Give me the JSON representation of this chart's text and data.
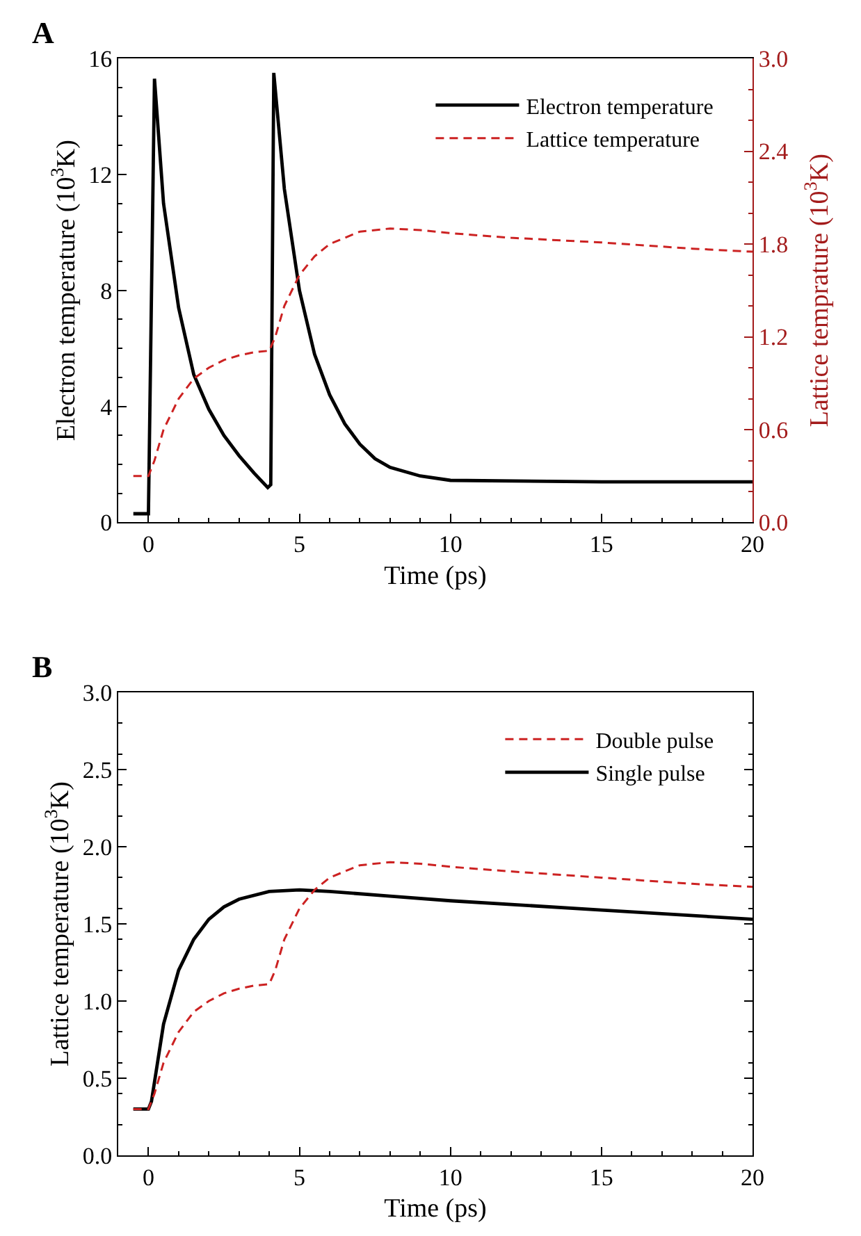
{
  "chart_data": [
    {
      "type": "line",
      "title": "A",
      "xlabel": "Time (ps)",
      "ylabel": "Electron temperature (10$^{3}$K)",
      "y2label": "Lattice temprature (10$^{3}$K)",
      "xlim": [
        -1,
        20
      ],
      "xticks": [
        0,
        5,
        10,
        15,
        20
      ],
      "ylim": [
        0,
        16
      ],
      "yticks": [
        0,
        4,
        8,
        12,
        16
      ],
      "y2lim": [
        0,
        3
      ],
      "y2ticks": [
        {
          "value": 0,
          "label": "0.0"
        },
        {
          "value": 0.6,
          "label": "0.6"
        },
        {
          "value": 1.2,
          "label": "1.2"
        },
        {
          "value": 1.8,
          "label": "1.8"
        },
        {
          "value": 2.4,
          "label": "2.4"
        },
        {
          "value": 3,
          "label": "3.0"
        }
      ],
      "legend": "top right",
      "series": [
        {
          "name": "Electron temperature",
          "color": "#000000",
          "line_style": "solid",
          "x": [
            -0.5,
            0,
            0.2,
            0.5,
            1,
            1.5,
            2,
            2.5,
            3,
            3.5,
            3.95,
            4.05,
            4.15,
            4.5,
            5,
            5.5,
            6,
            6.5,
            7,
            7.5,
            8,
            9,
            10,
            15,
            20
          ],
          "values": [
            0.3,
            0.3,
            15.3,
            11,
            7.4,
            5.1,
            3.9,
            3.0,
            2.3,
            1.7,
            1.2,
            1.3,
            15.5,
            11.5,
            8.0,
            5.8,
            4.4,
            3.4,
            2.7,
            2.2,
            1.9,
            1.6,
            1.45,
            1.4,
            1.4
          ]
        },
        {
          "name": "Lattice temperature",
          "color": "#cc2222",
          "line_style": "dashed",
          "axis": "y2",
          "x": [
            -0.5,
            0,
            0.2,
            0.5,
            1,
            1.5,
            2,
            2.5,
            3,
            3.5,
            4,
            4.2,
            4.5,
            5,
            5.5,
            6,
            7,
            8,
            9,
            10,
            12,
            15,
            18,
            20
          ],
          "values": [
            0.3,
            0.3,
            0.4,
            0.6,
            0.8,
            0.93,
            1.0,
            1.05,
            1.08,
            1.1,
            1.11,
            1.2,
            1.4,
            1.6,
            1.72,
            1.8,
            1.88,
            1.9,
            1.89,
            1.87,
            1.84,
            1.81,
            1.77,
            1.75
          ]
        }
      ]
    },
    {
      "type": "line",
      "title": "B",
      "xlabel": "Time (ps)",
      "ylabel": "Lattice temperature (10$^{3}$K)",
      "xlim": [
        -1,
        20
      ],
      "xticks": [
        0,
        5,
        10,
        15,
        20
      ],
      "ylim": [
        0,
        3
      ],
      "yticks": [
        {
          "value": 0,
          "label": "0.0"
        },
        {
          "value": 0.5,
          "label": "0.5"
        },
        {
          "value": 1,
          "label": "1.0"
        },
        {
          "value": 1.5,
          "label": "1.5"
        },
        {
          "value": 2,
          "label": "2.0"
        },
        {
          "value": 2.5,
          "label": "2.5"
        },
        {
          "value": 3,
          "label": "3.0"
        }
      ],
      "legend": "top right",
      "series": [
        {
          "name": "Double pulse",
          "color": "#cc2222",
          "line_style": "dashed",
          "x": [
            -0.5,
            0,
            0.2,
            0.5,
            1,
            1.5,
            2,
            2.5,
            3,
            3.5,
            4,
            4.2,
            4.5,
            5,
            5.5,
            6,
            7,
            8,
            9,
            10,
            12,
            15,
            18,
            20
          ],
          "values": [
            0.3,
            0.3,
            0.4,
            0.6,
            0.8,
            0.93,
            1.0,
            1.05,
            1.08,
            1.1,
            1.11,
            1.2,
            1.4,
            1.6,
            1.72,
            1.8,
            1.88,
            1.9,
            1.89,
            1.87,
            1.84,
            1.8,
            1.76,
            1.74
          ]
        },
        {
          "name": "Single pulse",
          "color": "#000000",
          "line_style": "solid",
          "x": [
            -0.5,
            0,
            0.1,
            0.3,
            0.5,
            1,
            1.5,
            2,
            2.5,
            3,
            4,
            5,
            6,
            8,
            10,
            15,
            20
          ],
          "values": [
            0.3,
            0.3,
            0.35,
            0.6,
            0.85,
            1.2,
            1.4,
            1.53,
            1.61,
            1.66,
            1.71,
            1.72,
            1.71,
            1.68,
            1.65,
            1.59,
            1.53
          ]
        }
      ]
    }
  ]
}
